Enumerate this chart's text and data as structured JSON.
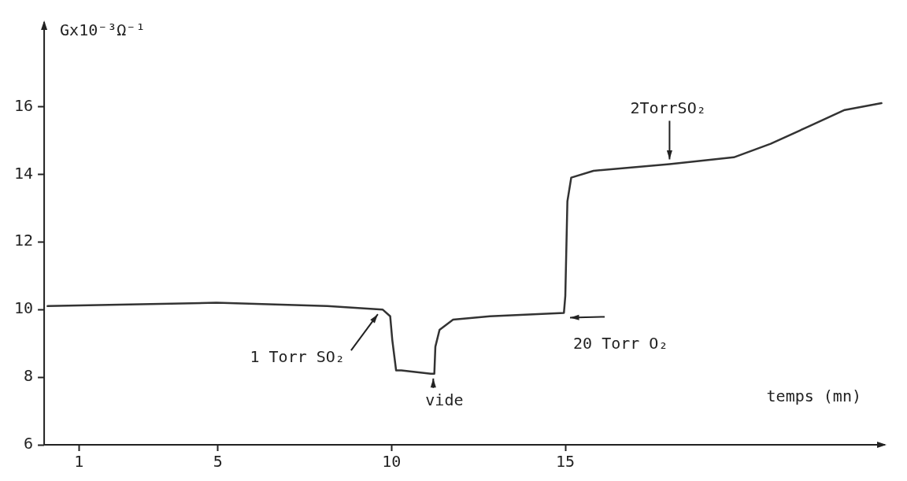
{
  "chart_data": {
    "type": "line",
    "xlabel": "temps (mn)",
    "ylabel": "Gx10⁻³Ω⁻¹",
    "x": [
      0.1,
      4.96,
      8.15,
      9.74,
      9.96,
      10.02,
      10.13,
      10.28,
      11.13,
      11.23,
      11.26,
      11.38,
      11.77,
      12.83,
      14.96,
      15.0,
      15.06,
      15.17,
      15.81,
      18.0,
      19.85,
      20.91,
      21.98,
      23.04,
      24.1
    ],
    "series": [
      {
        "color": "#333333",
        "values": [
          10.1,
          10.2,
          10.1,
          10.0,
          9.8,
          9.1,
          8.2,
          8.2,
          8.1,
          8.1,
          8.9,
          9.4,
          9.7,
          9.8,
          9.9,
          10.4,
          13.2,
          13.9,
          14.1,
          14.3,
          14.5,
          14.9,
          15.4,
          15.9,
          16.1
        ]
      }
    ],
    "xlim": [
      0,
      24.2
    ],
    "ylim": [
      6,
      18.5
    ],
    "xticks": [
      1,
      5,
      10,
      15
    ],
    "yticks": [
      6,
      8,
      10,
      12,
      14,
      16
    ],
    "grid": false,
    "legend": false,
    "marker": "none",
    "line_style": "solid",
    "annotations": [
      {
        "text": "1 Torr SO₂",
        "x": 9.74,
        "y": 10.0
      },
      {
        "text": "vide",
        "x": 11.2,
        "y": 8.1
      },
      {
        "text": "20 Torr O₂",
        "x": 15.0,
        "y": 9.9
      },
      {
        "text": "2TorrSO₂",
        "x": 18.0,
        "y": 14.3
      }
    ]
  }
}
